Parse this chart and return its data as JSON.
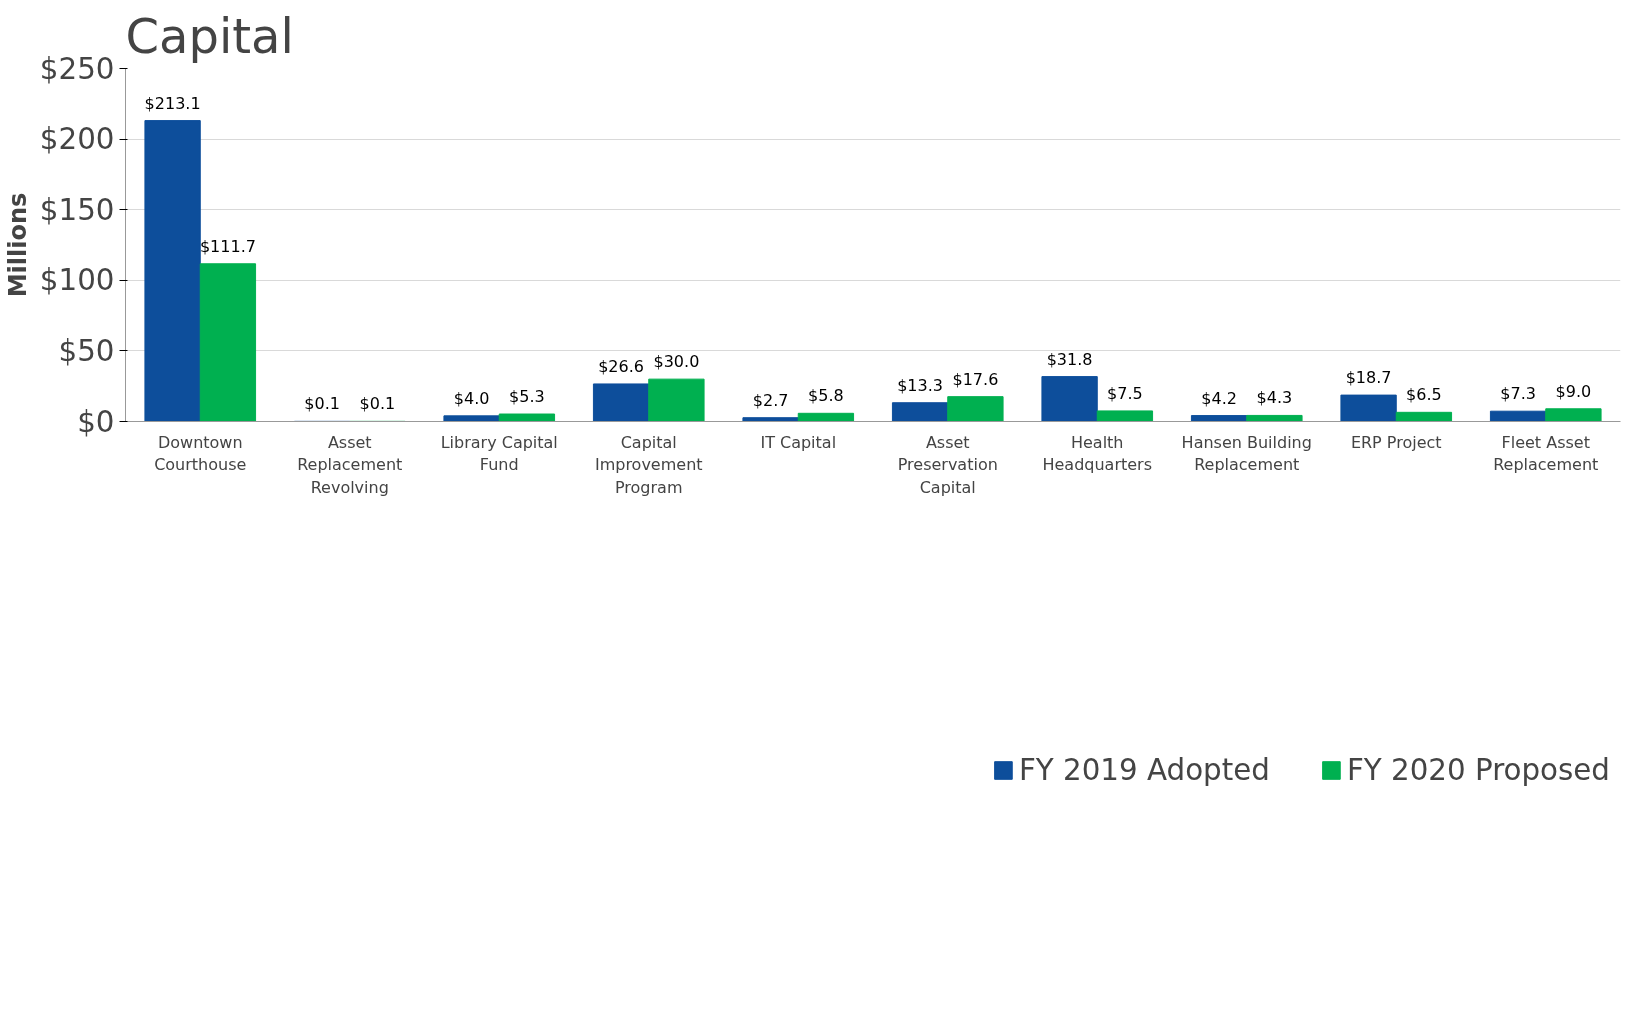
{
  "chart_data": {
    "type": "bar",
    "title": "Capital",
    "ylabel": "Millions",
    "categories": [
      "Downtown Courthouse",
      "Asset Replacement Revolving",
      "Library Capital Fund",
      "Capital Improvement Program",
      "IT Capital",
      "Asset Preservation Capital",
      "Health Headquarters",
      "Hansen Building Replacement",
      "ERP Project",
      "Fleet Asset Replacement"
    ],
    "series": [
      {
        "name": "FY 2019 Adopted",
        "color": "#0d4e9b",
        "values": [
          213.1,
          0.1,
          4.0,
          26.6,
          2.7,
          13.3,
          31.8,
          4.2,
          18.7,
          7.3
        ],
        "value_labels": [
          "$213.1",
          "$0.1",
          "$4.0",
          "$26.6",
          "$2.7",
          "$13.3",
          "$31.8",
          "$4.2",
          "$18.7",
          "$7.3"
        ]
      },
      {
        "name": "FY 2020 Proposed",
        "color": "#00b050",
        "values": [
          111.7,
          0.1,
          5.3,
          30.0,
          5.8,
          17.6,
          7.5,
          4.3,
          6.5,
          9.0
        ],
        "value_labels": [
          "$111.7",
          "$0.1",
          "$5.3",
          "$30.0",
          "$5.8",
          "$17.6",
          "$7.5",
          "$4.3",
          "$6.5",
          "$9.0"
        ]
      }
    ],
    "ylim": [
      0,
      250
    ],
    "yticks": [
      {
        "value": 0,
        "label": "$0"
      },
      {
        "value": 50,
        "label": "$50"
      },
      {
        "value": 100,
        "label": "$100"
      },
      {
        "value": 150,
        "label": "$150"
      },
      {
        "value": 200,
        "label": "$200"
      },
      {
        "value": 250,
        "label": "$250"
      }
    ],
    "grid": "y",
    "legend": "bottom"
  }
}
